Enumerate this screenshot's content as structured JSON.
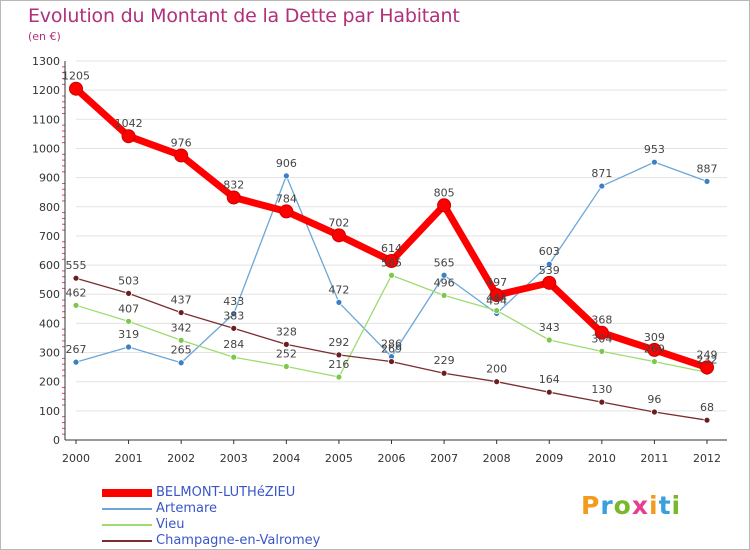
{
  "title": "Evolution du Montant de la Dette par Habitant",
  "unit_label": "(en €)",
  "logo": {
    "text": "Proxiti",
    "letter_colors": [
      "#f29b1d",
      "#3aa0dd",
      "#78b82a",
      "#e83e8c",
      "#f29b1d",
      "#3aa0dd",
      "#78b82a"
    ]
  },
  "chart_data": {
    "type": "line",
    "title": "Evolution du Montant de la Dette par Habitant",
    "ylabel": "(en €)",
    "xlabel": "",
    "x": [
      "2000",
      "2001",
      "2002",
      "2003",
      "2004",
      "2005",
      "2006",
      "2007",
      "2008",
      "2009",
      "2010",
      "2011",
      "2012"
    ],
    "yticks": [
      "0",
      "100",
      "200",
      "300",
      "400",
      "500",
      "600",
      "700",
      "800",
      "900",
      "1000",
      "1100",
      "1200",
      "1300"
    ],
    "ylim": [
      0,
      1300
    ],
    "grid": "horizontal",
    "legend_position": "bottom-left",
    "series": [
      {
        "name": "BELMONT-LUTHéZIEU",
        "color": "#ff0000",
        "marker_color": "#cc0000",
        "width": 7,
        "values": [
          1205,
          1042,
          976,
          832,
          784,
          702,
          614,
          805,
          497,
          539,
          368,
          309,
          249
        ]
      },
      {
        "name": "Artemare",
        "color": "#6aa7d8",
        "marker_color": "#3b7fc4",
        "width": 1.3,
        "values": [
          267,
          319,
          265,
          433,
          906,
          472,
          286,
          565,
          434,
          603,
          871,
          953,
          887
        ]
      },
      {
        "name": "Vieu",
        "color": "#9edc72",
        "marker_color": "#7bc84a",
        "width": 1.3,
        "values": [
          462,
          407,
          342,
          284,
          252,
          216,
          565,
          496,
          444,
          343,
          304,
          269,
          232
        ]
      },
      {
        "name": "Champagne-en-Valromey",
        "color": "#7b2e2e",
        "marker_color": "#6a1f1f",
        "width": 1.3,
        "values": [
          555,
          503,
          437,
          383,
          328,
          292,
          269,
          229,
          200,
          164,
          130,
          96,
          68
        ]
      }
    ]
  }
}
